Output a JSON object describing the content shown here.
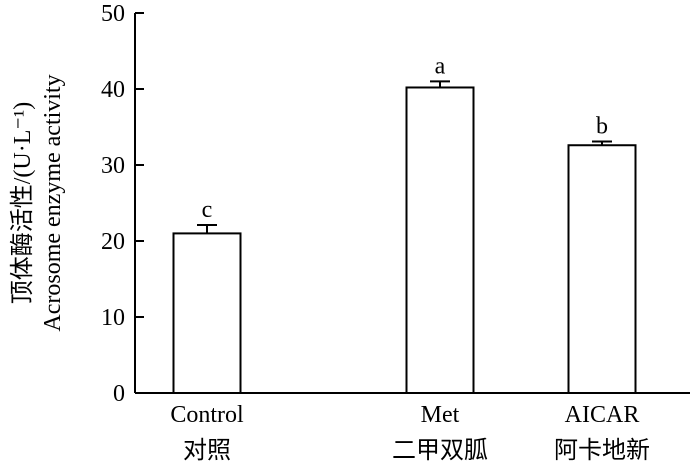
{
  "chart_data": {
    "type": "bar",
    "categories": [
      {
        "en": "Control",
        "zh": "对照"
      },
      {
        "en": "Met",
        "zh": "二甲双胍"
      },
      {
        "en": "AICAR",
        "zh": "阿卡地新"
      }
    ],
    "values": [
      21.0,
      40.2,
      32.6
    ],
    "error": [
      1.1,
      0.8,
      0.5
    ],
    "significance": [
      "c",
      "a",
      "b"
    ],
    "ylabel_zh": "顶体酶活性/(U·L⁻¹)",
    "ylabel_en": "Acrosome enzyme activity",
    "ylim": [
      0,
      50
    ],
    "yticks": [
      0,
      10,
      20,
      30,
      40,
      50
    ],
    "grid": false,
    "bar_fill": "#ffffff",
    "bar_stroke": "#000000"
  }
}
